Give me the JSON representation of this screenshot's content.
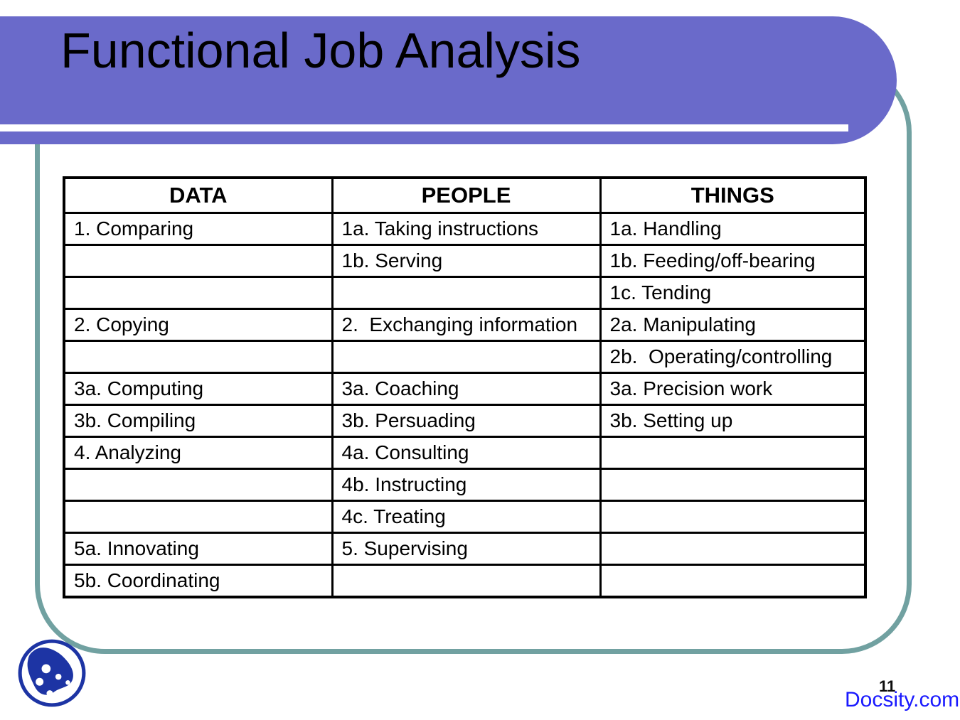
{
  "slide": {
    "title": "Functional Job Analysis",
    "page_number": "11",
    "watermark": "Docsity.com"
  },
  "table": {
    "columns": [
      "DATA",
      "PEOPLE",
      "THINGS"
    ],
    "rows": [
      [
        "1. Comparing",
        "1a. Taking instructions",
        "1a. Handling"
      ],
      [
        "",
        "1b. Serving",
        "1b. Feeding/off-bearing"
      ],
      [
        "",
        "",
        "1c. Tending"
      ],
      [
        "2. Copying",
        "2.  Exchanging information",
        "2a. Manipulating"
      ],
      [
        "",
        "",
        "2b.  Operating/controlling"
      ],
      [
        "3a. Computing",
        "3a. Coaching",
        "3a. Precision work"
      ],
      [
        "3b. Compiling",
        "3b. Persuading",
        "3b. Setting up"
      ],
      [
        "4. Analyzing",
        "4a. Consulting",
        ""
      ],
      [
        "",
        "4b. Instructing",
        ""
      ],
      [
        "",
        "4c. Treating",
        ""
      ],
      [
        "5a. Innovating",
        "5. Supervising",
        ""
      ],
      [
        "5b. Coordinating",
        "",
        ""
      ]
    ]
  },
  "icons": {
    "logo": "docsity-blob-logo"
  },
  "colors": {
    "banner-purple": "#6A6ACA",
    "frame-teal": "#71A1A1",
    "docsity-blue": "#1A1AFF",
    "logo-blue": "#1D34A4",
    "text-black": "#000000"
  }
}
